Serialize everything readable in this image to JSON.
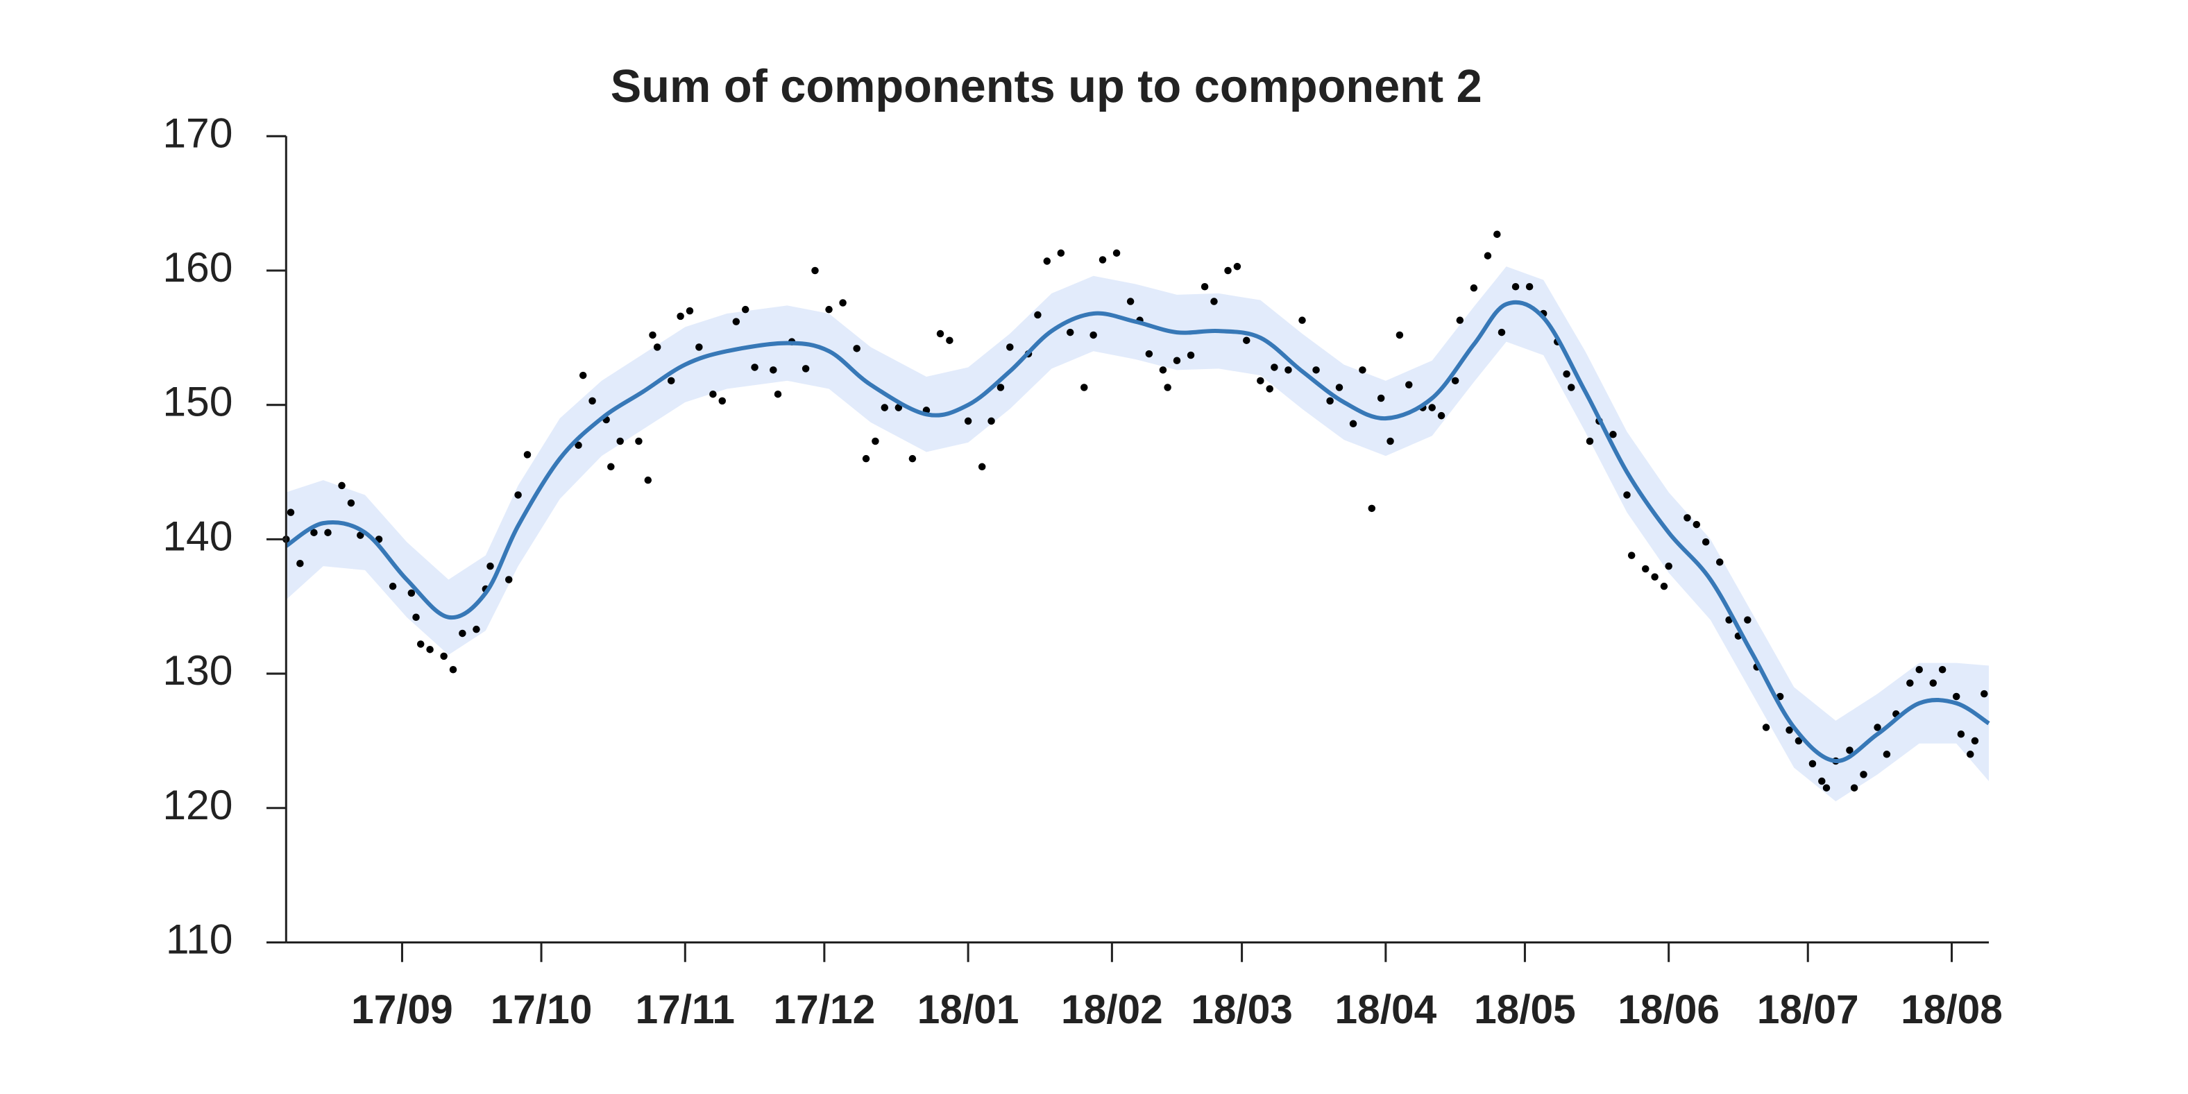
{
  "chart_data": {
    "type": "line",
    "title": "Sum of components up to component 2",
    "xlim": [
      0,
      367
    ],
    "xticks": [
      {
        "value": 25,
        "label": "17/09"
      },
      {
        "value": 55,
        "label": "17/10"
      },
      {
        "value": 86,
        "label": "17/11"
      },
      {
        "value": 116,
        "label": "17/12"
      },
      {
        "value": 147,
        "label": "18/01"
      },
      {
        "value": 178,
        "label": "18/02"
      },
      {
        "value": 206,
        "label": "18/03"
      },
      {
        "value": 237,
        "label": "18/04"
      },
      {
        "value": 267,
        "label": "18/05"
      },
      {
        "value": 298,
        "label": "18/06"
      },
      {
        "value": 328,
        "label": "18/07"
      },
      {
        "value": 359,
        "label": "18/08"
      }
    ],
    "ylim": [
      110,
      170
    ],
    "yticks": [
      110,
      120,
      130,
      140,
      150,
      160,
      170
    ],
    "x": [
      0,
      8,
      17,
      26,
      35,
      43,
      50,
      59,
      68,
      77,
      86,
      95,
      108,
      117,
      126,
      138,
      147,
      156,
      165,
      174,
      183,
      192,
      201,
      210,
      219,
      228,
      237,
      247,
      256,
      263,
      271,
      280,
      289,
      298,
      307,
      316,
      325,
      334,
      343,
      352,
      360,
      367
    ],
    "series": [
      {
        "color": "#3778b7",
        "values": [
          139.5,
          141.2,
          140.5,
          137,
          134.2,
          136,
          141,
          146,
          149,
          151,
          153,
          154,
          154.6,
          154,
          151.5,
          149.3,
          150,
          152.5,
          155.5,
          156.8,
          156.2,
          155.4,
          155.5,
          155,
          152.5,
          150.2,
          149,
          150.5,
          154.5,
          157.5,
          156.5,
          151,
          145,
          140.5,
          137,
          131.5,
          126,
          123.5,
          125.5,
          127.8,
          127.8,
          126.3
        ]
      }
    ],
    "band": {
      "color": "#e2ebfb",
      "upper": [
        143.5,
        144.4,
        143.3,
        139.8,
        137,
        138.8,
        144,
        149,
        151.8,
        153.8,
        155.8,
        156.8,
        157.4,
        156.8,
        154.3,
        152.1,
        152.8,
        155.3,
        158.3,
        159.6,
        159,
        158.2,
        158.3,
        157.8,
        155.3,
        153,
        151.8,
        153.3,
        157.3,
        160.3,
        159.3,
        154,
        148,
        143.5,
        140,
        134.5,
        129,
        126.5,
        128.5,
        130.8,
        130.8,
        130.6
      ],
      "lower": [
        135.5,
        138,
        137.7,
        134.2,
        131.4,
        133.2,
        138,
        143,
        146.2,
        148.2,
        150.2,
        151.2,
        151.8,
        151.2,
        148.7,
        146.5,
        147.2,
        149.7,
        152.7,
        154,
        153.4,
        152.6,
        152.7,
        152.2,
        149.7,
        147.4,
        146.2,
        147.7,
        151.7,
        154.7,
        153.7,
        148,
        142,
        137.5,
        134,
        128.5,
        123,
        120.5,
        122.5,
        124.8,
        124.8,
        122
      ]
    },
    "points": {
      "color": "#000000",
      "x": [
        0,
        1,
        3,
        6,
        9,
        12,
        14,
        16,
        20,
        23,
        27,
        28,
        29,
        31,
        34,
        36,
        38,
        41,
        43,
        44,
        48,
        50,
        52,
        63,
        64,
        66,
        69,
        70,
        72,
        76,
        78,
        79,
        80,
        83,
        85,
        87,
        89,
        92,
        94,
        97,
        99,
        101,
        105,
        106,
        109,
        112,
        114,
        117,
        120,
        123,
        125,
        127,
        129,
        132,
        135,
        138,
        141,
        143,
        147,
        150,
        152,
        154,
        156,
        160,
        162,
        164,
        167,
        169,
        172,
        174,
        176,
        179,
        182,
        184,
        186,
        189,
        190,
        192,
        195,
        198,
        200,
        203,
        205,
        207,
        210,
        212,
        213,
        216,
        219,
        222,
        225,
        227,
        230,
        232,
        234,
        236,
        238,
        240,
        242,
        245,
        247,
        249,
        252,
        253,
        256,
        259,
        261,
        262,
        265,
        268,
        271,
        274,
        276,
        277,
        281,
        283,
        286,
        289,
        290,
        293,
        295,
        297,
        298,
        302,
        304,
        306,
        309,
        311,
        313,
        315,
        317,
        319,
        322,
        324,
        326,
        329,
        331,
        332,
        334,
        337,
        338,
        340,
        343,
        345,
        347,
        350,
        352,
        355,
        357,
        360,
        361,
        363,
        364,
        366
      ],
      "y": [
        140,
        142,
        138.2,
        140.5,
        140.5,
        144,
        142.7,
        140.3,
        140,
        136.5,
        136,
        134.2,
        132.2,
        131.8,
        131.3,
        130.3,
        133,
        133.3,
        136.3,
        138,
        137,
        143.3,
        146.3,
        147,
        152.2,
        150.3,
        148.9,
        145.4,
        147.3,
        147.3,
        144.4,
        155.2,
        154.3,
        151.8,
        156.6,
        157,
        154.3,
        150.8,
        150.3,
        156.2,
        157.1,
        152.8,
        152.6,
        150.8,
        154.7,
        152.7,
        160,
        157.1,
        157.6,
        154.2,
        146,
        147.3,
        149.8,
        149.8,
        146,
        149.6,
        155.3,
        154.8,
        148.8,
        145.4,
        148.8,
        151.3,
        154.3,
        153.8,
        156.7,
        160.7,
        161.3,
        155.4,
        151.3,
        155.2,
        160.8,
        161.3,
        157.7,
        156.3,
        153.8,
        152.6,
        151.3,
        153.3,
        153.7,
        158.8,
        157.7,
        160,
        160.3,
        154.8,
        151.8,
        151.2,
        152.8,
        152.6,
        156.3,
        152.6,
        150.3,
        151.3,
        148.6,
        152.6,
        142.3,
        150.5,
        147.3,
        155.2,
        151.5,
        149.8,
        149.8,
        149.2,
        151.8,
        156.3,
        158.7,
        161.1,
        162.7,
        155.4,
        158.8,
        158.8,
        156.8,
        154.7,
        152.3,
        151.3,
        147.3,
        148.8,
        147.8,
        143.3,
        138.8,
        137.8,
        137.2,
        136.5,
        138,
        141.6,
        141.1,
        139.8,
        138.3,
        134,
        132.8,
        134,
        130.5,
        126,
        128.3,
        125.8,
        125,
        123.3,
        122,
        121.5,
        123.5,
        124.3,
        121.5,
        122.5,
        126,
        124,
        127,
        129.3,
        130.3,
        129.3,
        130.3,
        128.3,
        125.5,
        124,
        125,
        128.5
      ]
    }
  }
}
